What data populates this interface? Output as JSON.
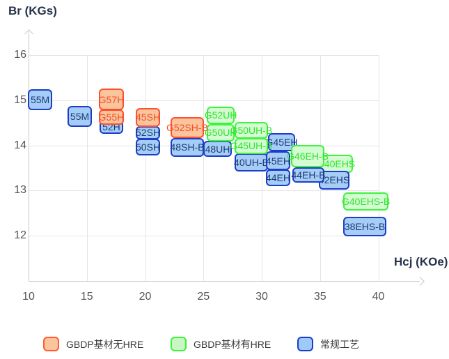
{
  "chart_data": {
    "type": "scatter",
    "title": "",
    "xlabel": "Hcj (KOe)",
    "ylabel": "Br (KGs)",
    "xticks": [
      10,
      15,
      20,
      25,
      30,
      35,
      40
    ],
    "yticks": [
      12,
      13,
      14,
      15,
      16
    ],
    "xlim": [
      10,
      45
    ],
    "ylim": [
      11,
      16.5
    ],
    "grid": true,
    "legend_position": "bottom",
    "series": [
      {
        "name": "GBDP基材无HRE",
        "key": "orange",
        "points": [
          {
            "label": "G57H",
            "x": 17.1,
            "y": 15.02,
            "w": 36,
            "h": 31,
            "z": 20
          },
          {
            "label": "G55H",
            "x": 17.1,
            "y": 14.63,
            "w": 36,
            "h": 22,
            "z": 19
          },
          {
            "label": "45SH",
            "x": 20.24,
            "y": 14.62,
            "w": 35,
            "h": 27,
            "z": 20
          },
          {
            "label": "G52SH-B",
            "x": 23.61,
            "y": 14.4,
            "w": 48,
            "h": 30,
            "z": 20
          }
        ]
      },
      {
        "name": "GBDP基材有HRE",
        "key": "green",
        "points": [
          {
            "label": "G52UH",
            "x": 26.48,
            "y": 14.67,
            "w": 40,
            "h": 25,
            "z": 20
          },
          {
            "label": "G50UH",
            "x": 26.48,
            "y": 14.28,
            "w": 40,
            "h": 25,
            "z": 19
          },
          {
            "label": "G50UH-B",
            "x": 29.1,
            "y": 14.33,
            "w": 48,
            "h": 24,
            "z": 20
          },
          {
            "label": "G45UH-B",
            "x": 29.1,
            "y": 13.99,
            "w": 48,
            "h": 23,
            "z": 19
          },
          {
            "label": "G46EH-B",
            "x": 33.94,
            "y": 13.76,
            "w": 48,
            "h": 32,
            "z": 20
          },
          {
            "label": "G40EHS",
            "x": 36.36,
            "y": 13.59,
            "w": 49,
            "h": 26,
            "z": 5
          },
          {
            "label": "G40EHS-B",
            "x": 38.93,
            "y": 12.76,
            "w": 65,
            "h": 26,
            "z": 10
          }
        ]
      },
      {
        "name": "常规工艺",
        "key": "blue",
        "points": [
          {
            "label": "55M",
            "x": 10.99,
            "y": 15.01,
            "w": 35,
            "h": 30,
            "z": 10
          },
          {
            "label": "55M",
            "x": 14.39,
            "y": 14.64,
            "w": 35,
            "h": 30,
            "z": 10
          },
          {
            "label": "52H",
            "x": 17.1,
            "y": 14.41,
            "w": 34,
            "h": 19,
            "z": 5
          },
          {
            "label": "52SH",
            "x": 20.24,
            "y": 14.28,
            "w": 35,
            "h": 19,
            "z": 10
          },
          {
            "label": "50SH",
            "x": 20.24,
            "y": 13.96,
            "w": 35,
            "h": 24,
            "z": 9
          },
          {
            "label": "48SH-B",
            "x": 23.61,
            "y": 13.96,
            "w": 48,
            "h": 27,
            "z": 10
          },
          {
            "label": "48UH",
            "x": 26.21,
            "y": 13.92,
            "w": 41,
            "h": 23,
            "z": 10
          },
          {
            "label": "40UH-B",
            "x": 29.1,
            "y": 13.62,
            "w": 48,
            "h": 26,
            "z": 10
          },
          {
            "label": "G45EH",
            "x": 31.7,
            "y": 14.07,
            "w": 39,
            "h": 26,
            "z": 12
          },
          {
            "label": "45EH",
            "x": 31.4,
            "y": 13.66,
            "w": 35,
            "h": 27,
            "z": 11
          },
          {
            "label": "44EH",
            "x": 31.4,
            "y": 13.28,
            "w": 35,
            "h": 24,
            "z": 10
          },
          {
            "label": "44EH-B",
            "x": 34.0,
            "y": 13.35,
            "w": 46,
            "h": 22,
            "z": 15
          },
          {
            "label": "42EHS",
            "x": 36.21,
            "y": 13.23,
            "w": 44,
            "h": 27,
            "z": 8
          },
          {
            "label": "38EHS-B",
            "x": 38.84,
            "y": 12.2,
            "w": 62,
            "h": 28,
            "z": 10
          }
        ]
      }
    ]
  },
  "legend": [
    {
      "label": "GBDP基材无HRE",
      "key": "orange"
    },
    {
      "label": "GBDP基材有HRE",
      "key": "green"
    },
    {
      "label": "常规工艺",
      "key": "blue"
    }
  ],
  "colors": {
    "orange_fill": "#fac49c",
    "orange_border": "#ff4f2d",
    "orange_text": "#f4502a",
    "green_fill": "#d5fbd2",
    "green_border": "#3cf43c",
    "green_text": "#2ee52e",
    "blue_fill": "#a6cdf8",
    "blue_border": "#1c3ec6",
    "blue_text": "#1b3c74",
    "axis": "#c9c9c9",
    "grid": "#e4e4e4",
    "tick_text": "#555555",
    "title_text": "#25324b"
  }
}
